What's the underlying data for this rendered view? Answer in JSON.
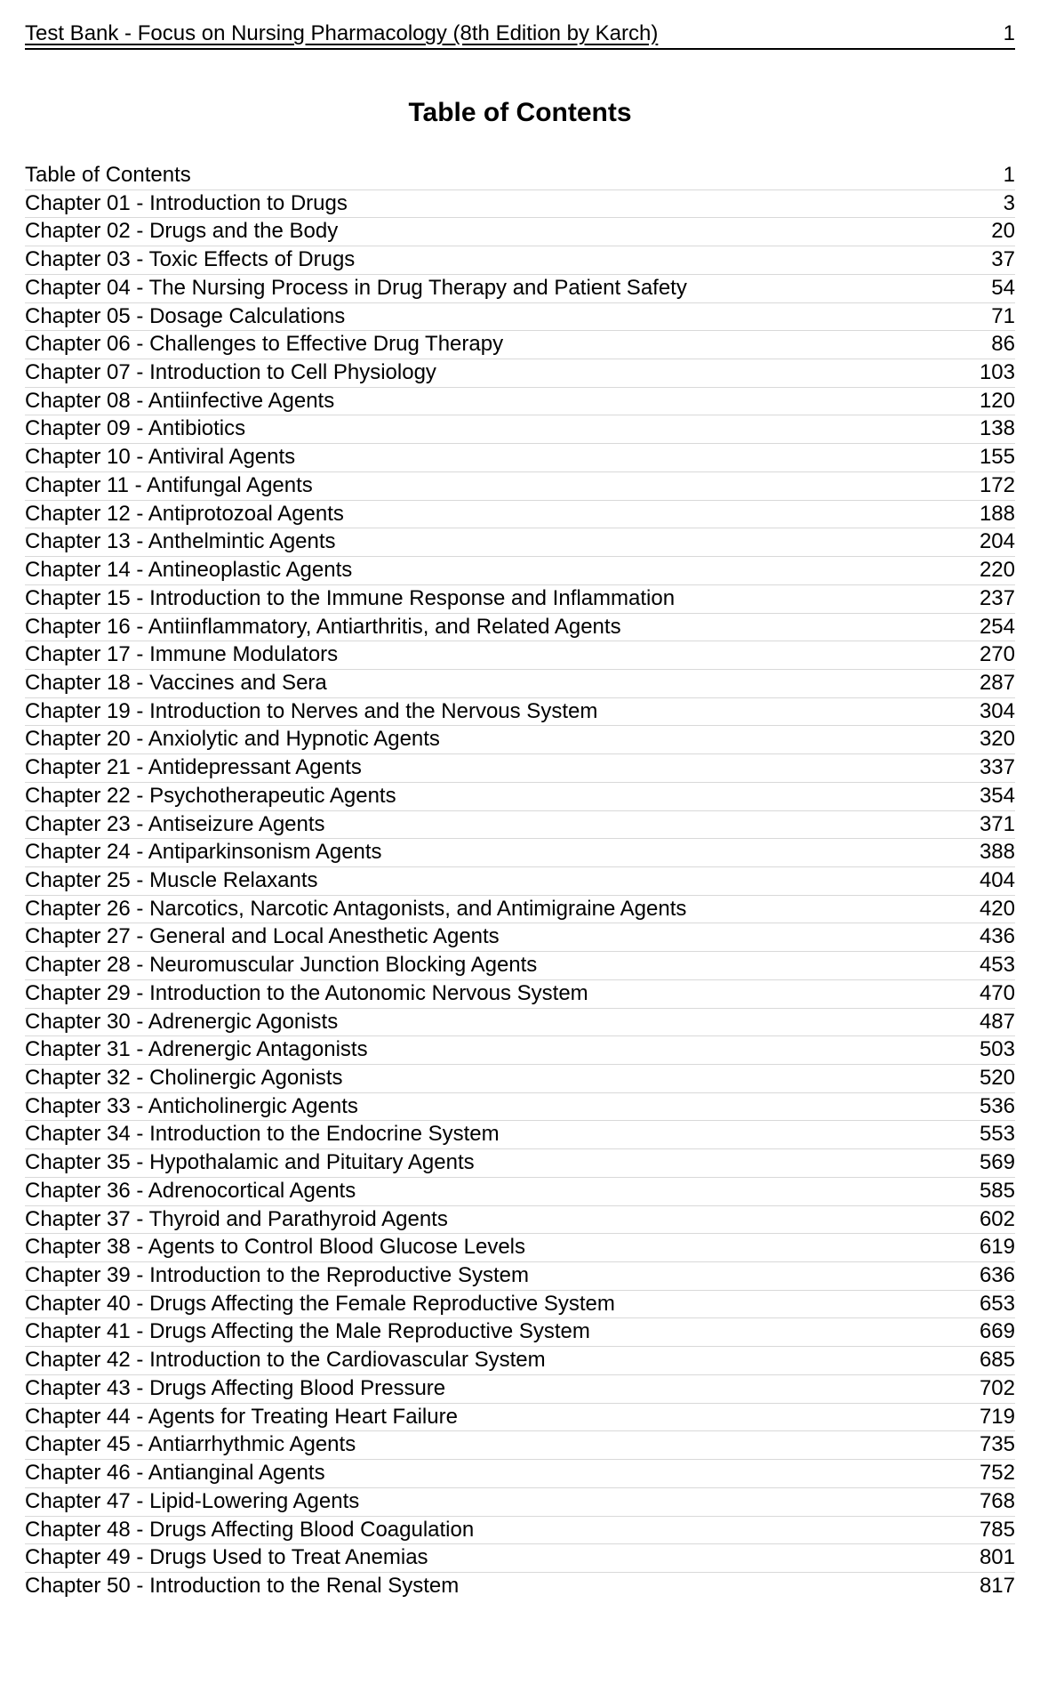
{
  "header": {
    "title": "Test Bank - Focus on Nursing Pharmacology (8th Edition by Karch)",
    "page_number": "1"
  },
  "toc": {
    "heading": "Table of Contents",
    "font_family": "Arial",
    "heading_fontsize_pt": 22,
    "entry_fontsize_pt": 18,
    "text_color": "#000000",
    "background_color": "#ffffff",
    "row_border_color": "#d9d9d9",
    "entries": [
      {
        "label": "Table of Contents",
        "page": "1"
      },
      {
        "label": "Chapter 01 - Introduction to Drugs",
        "page": "3"
      },
      {
        "label": "Chapter 02 - Drugs and the Body",
        "page": "20"
      },
      {
        "label": "Chapter 03 - Toxic Effects of Drugs",
        "page": "37"
      },
      {
        "label": "Chapter 04 - The Nursing Process in Drug Therapy and Patient Safety",
        "page": "54"
      },
      {
        "label": "Chapter 05 - Dosage Calculations",
        "page": "71"
      },
      {
        "label": "Chapter 06 - Challenges to Effective Drug Therapy",
        "page": "86"
      },
      {
        "label": "Chapter 07 - Introduction to Cell Physiology",
        "page": "103"
      },
      {
        "label": "Chapter 08 - Antiinfective Agents",
        "page": "120"
      },
      {
        "label": "Chapter 09 - Antibiotics",
        "page": "138"
      },
      {
        "label": "Chapter 10 - Antiviral Agents",
        "page": "155"
      },
      {
        "label": "Chapter 11 - Antifungal Agents",
        "page": "172"
      },
      {
        "label": "Chapter 12 - Antiprotozoal Agents",
        "page": "188"
      },
      {
        "label": "Chapter 13 - Anthelmintic Agents",
        "page": "204"
      },
      {
        "label": "Chapter 14 - Antineoplastic Agents",
        "page": "220"
      },
      {
        "label": "Chapter 15 - Introduction to the Immune Response and Inflammation",
        "page": "237"
      },
      {
        "label": "Chapter 16 - Antiinflammatory, Antiarthritis, and Related Agents",
        "page": "254"
      },
      {
        "label": "Chapter 17 - Immune Modulators",
        "page": "270"
      },
      {
        "label": "Chapter 18 - Vaccines and Sera",
        "page": "287"
      },
      {
        "label": "Chapter 19 - Introduction to Nerves and the Nervous System",
        "page": "304"
      },
      {
        "label": "Chapter 20 - Anxiolytic and Hypnotic Agents",
        "page": "320"
      },
      {
        "label": "Chapter 21 - Antidepressant Agents",
        "page": "337"
      },
      {
        "label": "Chapter 22 - Psychotherapeutic Agents",
        "page": "354"
      },
      {
        "label": "Chapter 23 - Antiseizure Agents",
        "page": "371"
      },
      {
        "label": "Chapter 24 - Antiparkinsonism Agents",
        "page": "388"
      },
      {
        "label": "Chapter 25 - Muscle Relaxants",
        "page": "404"
      },
      {
        "label": "Chapter 26 - Narcotics, Narcotic Antagonists, and Antimigraine Agents",
        "page": "420"
      },
      {
        "label": "Chapter 27 - General and Local Anesthetic Agents",
        "page": "436"
      },
      {
        "label": "Chapter 28 - Neuromuscular Junction Blocking Agents",
        "page": "453"
      },
      {
        "label": "Chapter 29 - Introduction to the Autonomic Nervous System",
        "page": "470"
      },
      {
        "label": "Chapter 30 - Adrenergic Agonists",
        "page": "487"
      },
      {
        "label": "Chapter 31 - Adrenergic Antagonists",
        "page": "503"
      },
      {
        "label": "Chapter 32 - Cholinergic Agonists",
        "page": "520"
      },
      {
        "label": "Chapter 33 - Anticholinergic Agents",
        "page": "536"
      },
      {
        "label": "Chapter 34 - Introduction to the Endocrine System",
        "page": "553"
      },
      {
        "label": "Chapter 35 - Hypothalamic and Pituitary Agents",
        "page": "569"
      },
      {
        "label": "Chapter 36 - Adrenocortical Agents",
        "page": "585"
      },
      {
        "label": "Chapter 37 - Thyroid and Parathyroid Agents",
        "page": "602"
      },
      {
        "label": "Chapter 38 - Agents to Control Blood Glucose Levels",
        "page": "619"
      },
      {
        "label": "Chapter 39 - Introduction to the Reproductive System",
        "page": "636"
      },
      {
        "label": "Chapter 40 - Drugs Affecting the Female Reproductive System",
        "page": "653"
      },
      {
        "label": "Chapter 41 - Drugs Affecting the Male Reproductive System",
        "page": "669"
      },
      {
        "label": "Chapter 42 - Introduction to the Cardiovascular System",
        "page": "685"
      },
      {
        "label": "Chapter 43 - Drugs Affecting Blood Pressure",
        "page": "702"
      },
      {
        "label": "Chapter 44 - Agents for Treating Heart Failure",
        "page": "719"
      },
      {
        "label": "Chapter 45 - Antiarrhythmic Agents",
        "page": "735"
      },
      {
        "label": "Chapter 46 - Antianginal Agents",
        "page": "752"
      },
      {
        "label": "Chapter 47 - Lipid-Lowering Agents",
        "page": "768"
      },
      {
        "label": "Chapter 48 - Drugs Affecting Blood Coagulation",
        "page": "785"
      },
      {
        "label": "Chapter 49 - Drugs Used to Treat Anemias",
        "page": "801"
      },
      {
        "label": "Chapter 50 - Introduction to the Renal System",
        "page": "817"
      }
    ]
  }
}
